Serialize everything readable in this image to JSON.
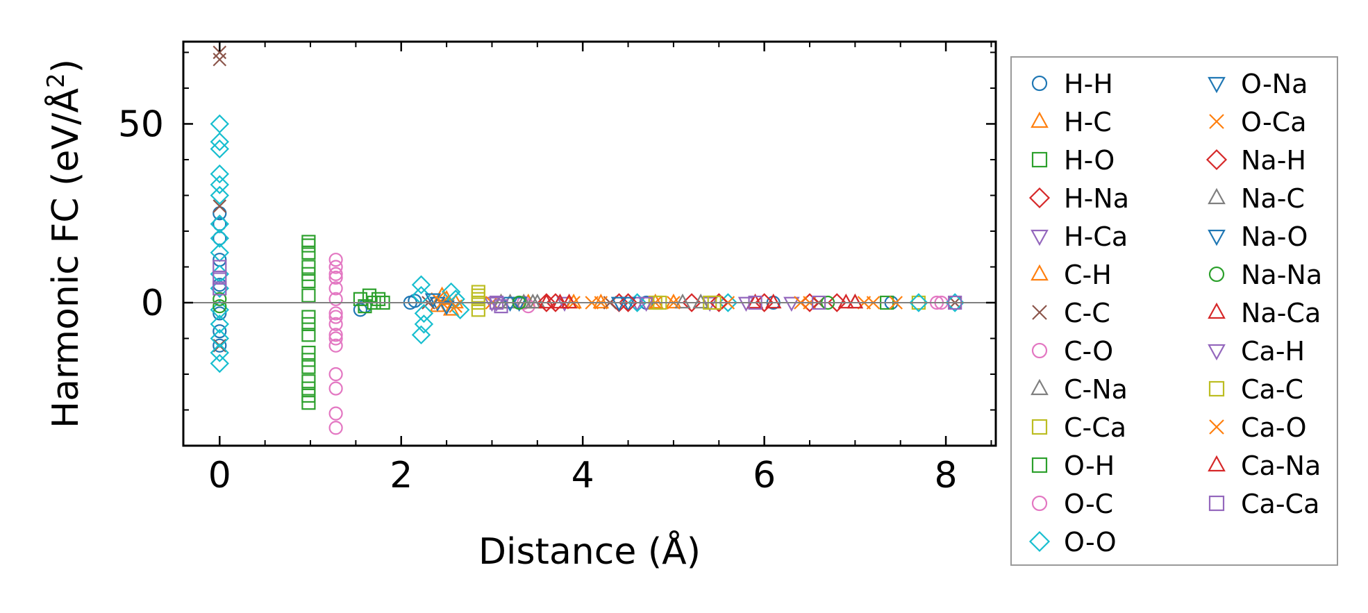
{
  "chart_data": {
    "type": "scatter",
    "title": "",
    "xlabel": "Distance (Å)",
    "ylabel_main": "Harmonic FC (eV/Å",
    "ylabel_sup": "2",
    "ylabel_close": ")",
    "xlim": [
      -0.4,
      8.55
    ],
    "ylim": [
      -40,
      73
    ],
    "x_ticks": [
      0,
      2,
      4,
      6,
      8
    ],
    "y_ticks": [
      0,
      50
    ],
    "x_tick_labels": [
      "0",
      "2",
      "4",
      "6",
      "8"
    ],
    "y_tick_labels": [
      "0",
      "50"
    ],
    "zero_line": true,
    "grid": false,
    "legend_position": "outside-right",
    "series": [
      {
        "name": "H-H",
        "marker": "circle",
        "color": "#1f77b4",
        "points": [
          [
            0,
            12
          ],
          [
            0,
            18
          ],
          [
            0,
            22
          ],
          [
            0,
            25
          ],
          [
            0,
            -8
          ],
          [
            0,
            -12
          ],
          [
            0,
            5
          ],
          [
            0,
            -3
          ],
          [
            2.1,
            0
          ],
          [
            2.15,
            0.5
          ],
          [
            1.55,
            -2
          ],
          [
            1.6,
            -1
          ],
          [
            3.3,
            0
          ],
          [
            4.7,
            0
          ],
          [
            6.1,
            0
          ],
          [
            7.4,
            0
          ]
        ]
      },
      {
        "name": "H-C",
        "marker": "triangle-up",
        "color": "#ff7f0e",
        "points": [
          [
            2.45,
            2
          ],
          [
            2.4,
            -1
          ],
          [
            2.6,
            0
          ],
          [
            3.4,
            0
          ],
          [
            4.2,
            0
          ],
          [
            5.0,
            0
          ]
        ]
      },
      {
        "name": "H-O",
        "marker": "square",
        "color": "#2ca02c",
        "points": [
          [
            0.98,
            17
          ],
          [
            0.98,
            14
          ],
          [
            0.98,
            10
          ],
          [
            0.98,
            6
          ],
          [
            0.98,
            2
          ],
          [
            0.98,
            -4
          ],
          [
            0.98,
            -9
          ],
          [
            0.98,
            -14
          ],
          [
            0.98,
            -18
          ],
          [
            0.98,
            -22
          ],
          [
            0.98,
            -26
          ],
          [
            0.98,
            -28
          ],
          [
            1.55,
            1
          ],
          [
            1.6,
            -1
          ],
          [
            1.7,
            0
          ],
          [
            1.75,
            1
          ],
          [
            1.65,
            2
          ],
          [
            1.8,
            0
          ]
        ]
      },
      {
        "name": "H-Na",
        "marker": "diamond",
        "color": "#d62728",
        "points": [
          [
            3.7,
            0
          ],
          [
            4.4,
            0
          ],
          [
            5.2,
            0
          ],
          [
            6.0,
            0
          ],
          [
            6.8,
            0
          ]
        ]
      },
      {
        "name": "H-Ca",
        "marker": "triangle-down",
        "color": "#9467bd",
        "points": [
          [
            3.0,
            0
          ],
          [
            3.8,
            0
          ],
          [
            4.6,
            0
          ],
          [
            5.4,
            0
          ],
          [
            6.3,
            0
          ]
        ]
      },
      {
        "name": "C-H",
        "marker": "triangle-up",
        "color": "#ff7f0e",
        "points": [
          [
            2.5,
            1
          ],
          [
            2.55,
            -2
          ],
          [
            3.1,
            0
          ],
          [
            3.9,
            0
          ],
          [
            4.8,
            0
          ]
        ]
      },
      {
        "name": "C-C",
        "marker": "x",
        "color": "#8c564b",
        "points": [
          [
            0,
            70
          ],
          [
            0,
            68
          ],
          [
            0,
            27
          ],
          [
            0,
            -12
          ],
          [
            2.3,
            0
          ],
          [
            4.3,
            0
          ],
          [
            6.6,
            0
          ],
          [
            8.1,
            0
          ]
        ]
      },
      {
        "name": "C-O",
        "marker": "circle",
        "color": "#e377c2",
        "points": [
          [
            1.28,
            12
          ],
          [
            1.28,
            10
          ],
          [
            1.28,
            7
          ],
          [
            1.28,
            4
          ],
          [
            1.28,
            1
          ],
          [
            1.28,
            -3
          ],
          [
            1.28,
            -6
          ],
          [
            1.28,
            -9
          ],
          [
            1.28,
            -12
          ],
          [
            1.28,
            -20
          ],
          [
            1.28,
            -24
          ],
          [
            1.28,
            -31
          ],
          [
            1.28,
            -35
          ],
          [
            3.35,
            0
          ],
          [
            3.4,
            -1
          ],
          [
            7.95,
            0
          ]
        ]
      },
      {
        "name": "C-Na",
        "marker": "triangle-up",
        "color": "#7f7f7f",
        "points": [
          [
            3.2,
            0
          ],
          [
            3.35,
            0
          ],
          [
            3.5,
            0
          ],
          [
            5.3,
            0
          ],
          [
            7.0,
            0
          ]
        ]
      },
      {
        "name": "C-Ca",
        "marker": "square",
        "color": "#bcbd22",
        "points": [
          [
            2.85,
            3
          ],
          [
            2.85,
            1
          ],
          [
            2.85,
            0
          ],
          [
            2.85,
            -2
          ],
          [
            4.8,
            0
          ],
          [
            5.4,
            0
          ],
          [
            7.7,
            0
          ]
        ]
      },
      {
        "name": "O-H",
        "marker": "square",
        "color": "#2ca02c",
        "points": [
          [
            0.98,
            16
          ],
          [
            0.98,
            8
          ],
          [
            0.98,
            -6
          ],
          [
            0.98,
            -16
          ],
          [
            0.98,
            -24
          ],
          [
            7.35,
            0
          ]
        ]
      },
      {
        "name": "O-C",
        "marker": "circle",
        "color": "#e377c2",
        "points": [
          [
            1.28,
            8
          ],
          [
            1.28,
            -4
          ],
          [
            1.28,
            -10
          ],
          [
            7.9,
            0
          ]
        ]
      },
      {
        "name": "O-O",
        "marker": "diamond",
        "color": "#17becf",
        "points": [
          [
            0,
            50
          ],
          [
            0,
            45
          ],
          [
            0,
            43
          ],
          [
            0,
            36
          ],
          [
            0,
            33
          ],
          [
            0,
            30
          ],
          [
            0,
            22
          ],
          [
            0,
            18
          ],
          [
            0,
            14
          ],
          [
            0,
            8
          ],
          [
            0,
            4
          ],
          [
            0,
            -2
          ],
          [
            0,
            -6
          ],
          [
            0,
            -10
          ],
          [
            0,
            -14
          ],
          [
            0,
            -17
          ],
          [
            2.22,
            5
          ],
          [
            2.22,
            2
          ],
          [
            2.25,
            -3
          ],
          [
            2.25,
            -6
          ],
          [
            2.22,
            -9
          ],
          [
            2.55,
            3
          ],
          [
            2.6,
            1
          ],
          [
            2.65,
            -2
          ],
          [
            4.6,
            0
          ],
          [
            5.6,
            0
          ],
          [
            7.7,
            0
          ],
          [
            8.1,
            0
          ]
        ]
      },
      {
        "name": "O-Na",
        "marker": "triangle-down",
        "color": "#1f77b4",
        "points": [
          [
            2.4,
            0
          ],
          [
            2.5,
            -1
          ],
          [
            3.3,
            0
          ],
          [
            4.5,
            0
          ]
        ]
      },
      {
        "name": "O-Ca",
        "marker": "x",
        "color": "#ff7f0e",
        "points": [
          [
            2.4,
            1
          ],
          [
            2.6,
            -1
          ],
          [
            3.0,
            0
          ],
          [
            3.9,
            0
          ],
          [
            4.1,
            0
          ],
          [
            4.8,
            0
          ],
          [
            5.6,
            0
          ],
          [
            6.5,
            0
          ],
          [
            7.2,
            0
          ],
          [
            7.45,
            0
          ]
        ]
      },
      {
        "name": "Na-H",
        "marker": "diamond",
        "color": "#d62728",
        "points": [
          [
            3.6,
            0
          ],
          [
            4.5,
            0
          ],
          [
            5.5,
            0
          ],
          [
            6.5,
            0
          ]
        ]
      },
      {
        "name": "Na-C",
        "marker": "triangle-up",
        "color": "#7f7f7f",
        "points": [
          [
            3.1,
            0
          ],
          [
            3.45,
            0
          ],
          [
            5.1,
            0
          ]
        ]
      },
      {
        "name": "Na-O",
        "marker": "triangle-down",
        "color": "#1f77b4",
        "points": [
          [
            2.35,
            1
          ],
          [
            3.2,
            0
          ],
          [
            4.4,
            0
          ]
        ]
      },
      {
        "name": "Na-Na",
        "marker": "circle",
        "color": "#2ca02c",
        "points": [
          [
            0,
            1
          ],
          [
            0,
            -1
          ],
          [
            3.3,
            0
          ],
          [
            6.7,
            0
          ]
        ]
      },
      {
        "name": "Na-Ca",
        "marker": "triangle-up",
        "color": "#d62728",
        "points": [
          [
            3.6,
            0
          ],
          [
            3.85,
            0
          ],
          [
            6.1,
            0
          ],
          [
            6.9,
            0
          ]
        ]
      },
      {
        "name": "Ca-H",
        "marker": "triangle-down",
        "color": "#9467bd",
        "points": [
          [
            3.05,
            0
          ],
          [
            4.7,
            0
          ],
          [
            5.8,
            0
          ]
        ]
      },
      {
        "name": "Ca-C",
        "marker": "square",
        "color": "#bcbd22",
        "points": [
          [
            2.85,
            2
          ],
          [
            4.85,
            0
          ],
          [
            5.45,
            0
          ]
        ]
      },
      {
        "name": "Ca-O",
        "marker": "x",
        "color": "#ff7f0e",
        "points": [
          [
            2.45,
            0
          ],
          [
            4.2,
            0
          ],
          [
            5.0,
            0
          ],
          [
            6.4,
            0
          ],
          [
            7.1,
            0
          ]
        ]
      },
      {
        "name": "Ca-Na",
        "marker": "triangle-up",
        "color": "#d62728",
        "points": [
          [
            3.75,
            0
          ],
          [
            5.9,
            0
          ],
          [
            7.0,
            0
          ]
        ]
      },
      {
        "name": "Ca-Ca",
        "marker": "square",
        "color": "#9467bd",
        "points": [
          [
            0,
            10
          ],
          [
            0,
            7
          ],
          [
            0,
            4
          ],
          [
            3.05,
            0
          ],
          [
            3.1,
            -1
          ],
          [
            5.9,
            0
          ],
          [
            6.6,
            0
          ],
          [
            8.1,
            0
          ]
        ]
      }
    ]
  }
}
